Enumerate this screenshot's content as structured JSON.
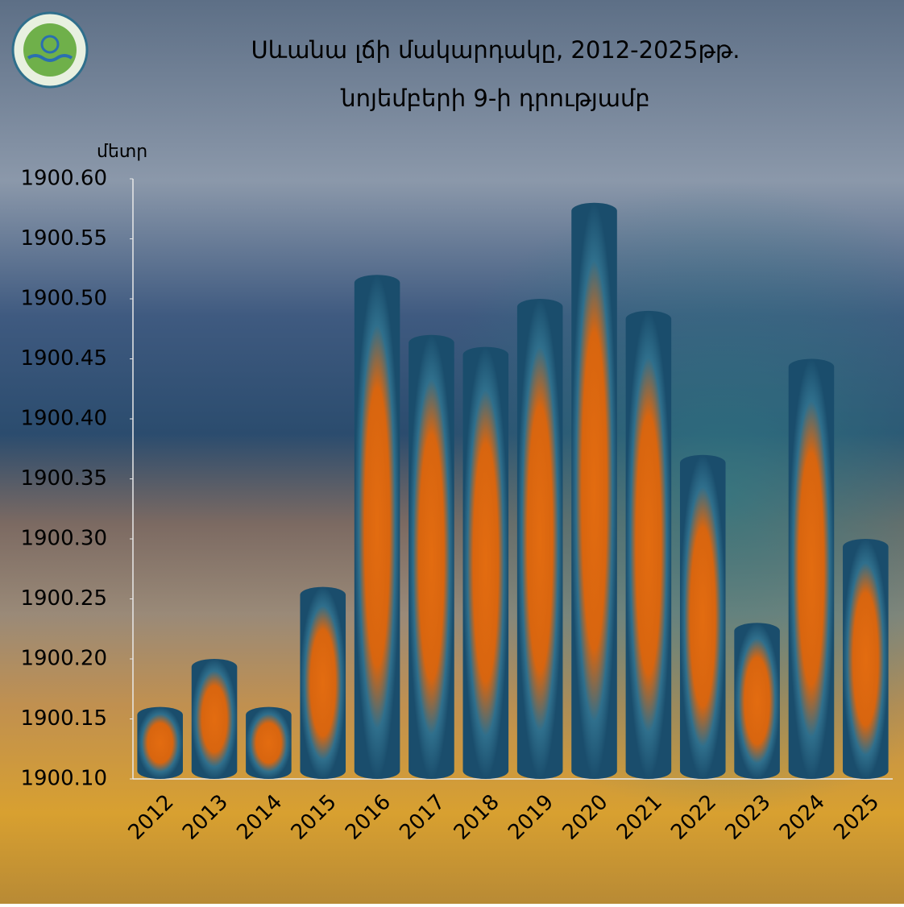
{
  "chart_data": {
    "type": "bar",
    "title": "Սևանա լճի մակարդակը, 2012-2025թթ.",
    "subtitle": "նոյեմբերի 9-ի դրությամբ",
    "y_label": "մետր",
    "categories": [
      "2012",
      "2013",
      "2014",
      "2015",
      "2016",
      "2017",
      "2018",
      "2019",
      "2020",
      "2021",
      "2022",
      "2023",
      "2024",
      "2025"
    ],
    "values": [
      1900.16,
      1900.2,
      1900.16,
      1900.26,
      1900.52,
      1900.47,
      1900.46,
      1900.5,
      1900.58,
      1900.49,
      1900.37,
      1900.23,
      1900.45,
      1900.3
    ],
    "color": "#d9650f",
    "ylim": [
      1900.1,
      1900.6
    ],
    "yticks": [
      {
        "value": 1900.1,
        "label": "1900.10"
      },
      1900.15,
      {
        "value": 1900.2,
        "label": "1900.20"
      },
      1900.25,
      {
        "value": 1900.3,
        "label": "1900.30"
      },
      1900.35,
      {
        "value": 1900.4,
        "label": "1900.40"
      },
      1900.45,
      {
        "value": 1900.5,
        "label": "1900.50"
      },
      1900.55,
      {
        "value": 1900.6,
        "label": "1900.60"
      }
    ],
    "grid": false
  }
}
